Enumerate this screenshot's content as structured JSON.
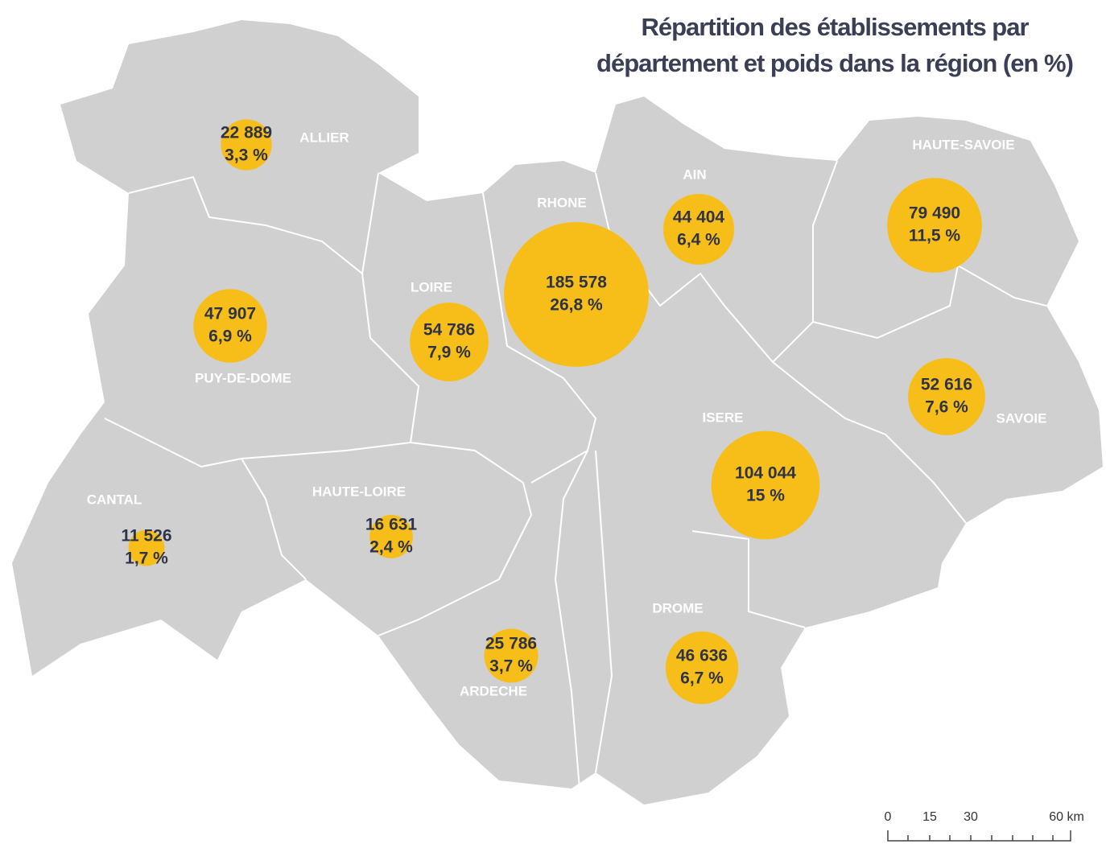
{
  "title": [
    "Répartition des établissements par",
    "département et poids dans la région (en %)"
  ],
  "departments": [
    {
      "name": "ALLIER",
      "value": 22889,
      "value_label": "22 889",
      "share": 3.3,
      "share_label": "3,3 %"
    },
    {
      "name": "PUY-DE-DOME",
      "value": 47907,
      "value_label": "47 907",
      "share": 6.9,
      "share_label": "6,9 %"
    },
    {
      "name": "LOIRE",
      "value": 54786,
      "value_label": "54 786",
      "share": 7.9,
      "share_label": "7,9 %"
    },
    {
      "name": "RHONE",
      "value": 185578,
      "value_label": "185 578",
      "share": 26.8,
      "share_label": "26,8 %"
    },
    {
      "name": "AIN",
      "value": 44404,
      "value_label": "44 404",
      "share": 6.4,
      "share_label": "6,4 %"
    },
    {
      "name": "HAUTE-SAVOIE",
      "value": 79490,
      "value_label": "79 490",
      "share": 11.5,
      "share_label": "11,5 %"
    },
    {
      "name": "SAVOIE",
      "value": 52616,
      "value_label": "52 616",
      "share": 7.6,
      "share_label": "7,6 %"
    },
    {
      "name": "ISERE",
      "value": 104044,
      "value_label": "104 044",
      "share": 15,
      "share_label": "15 %"
    },
    {
      "name": "DROME",
      "value": 46636,
      "value_label": "46 636",
      "share": 6.7,
      "share_label": "6,7 %"
    },
    {
      "name": "ARDECHE",
      "value": 25786,
      "value_label": "25 786",
      "share": 3.7,
      "share_label": "3,7 %"
    },
    {
      "name": "HAUTE-LOIRE",
      "value": 16631,
      "value_label": "16 631",
      "share": 2.4,
      "share_label": "2,4 %"
    },
    {
      "name": "CANTAL",
      "value": 11526,
      "value_label": "11 526",
      "share": 1.7,
      "share_label": "1,7 %"
    }
  ],
  "scale_bar": [
    "0",
    "15",
    "30",
    "60 km"
  ]
}
